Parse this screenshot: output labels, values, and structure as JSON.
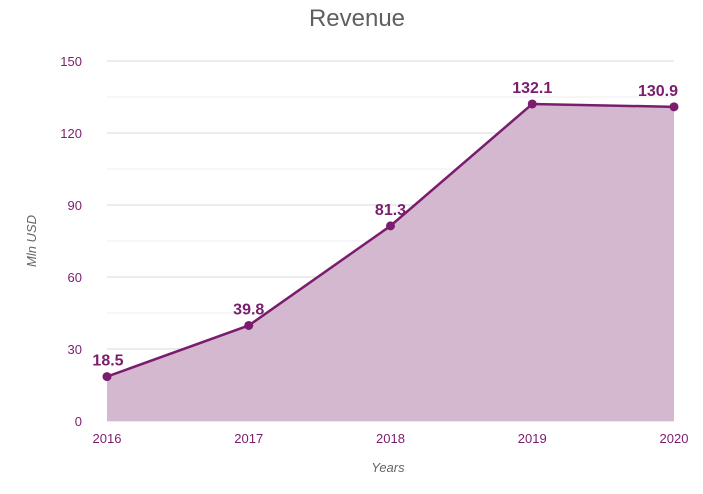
{
  "chart_data": {
    "type": "area",
    "title": "Revenue",
    "xlabel": "Years",
    "ylabel": "Mln USD",
    "ylim": [
      0,
      150
    ],
    "yticks": [
      0,
      30,
      60,
      90,
      120,
      150
    ],
    "yticks_labels": [
      "0",
      "30",
      "60",
      "90",
      "120",
      "150"
    ],
    "grid": true,
    "legend": "none",
    "categories": [
      "2016",
      "2017",
      "2018",
      "2019",
      "2020"
    ],
    "series": [
      {
        "name": "Revenue",
        "values": [
          18.5,
          39.8,
          81.3,
          132.1,
          130.9
        ],
        "labels": [
          "18.5",
          "39.8",
          "81.3",
          "132.1",
          "130.9"
        ]
      }
    ],
    "colors": {
      "line": "#7b1d6e",
      "fill": "#d4b8cf",
      "text": "#7b1d6e",
      "title": "#5f5f5f"
    }
  }
}
